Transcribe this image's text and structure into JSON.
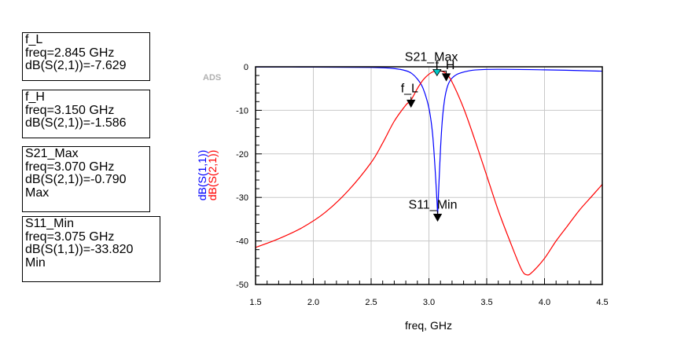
{
  "tool_label": "ADS",
  "markers": [
    {
      "name": "f_L",
      "lines": [
        "f_L",
        "freq=2.845 GHz",
        "dB(S(2,1))=-7.629"
      ]
    },
    {
      "name": "f_H",
      "lines": [
        "f_H",
        "freq=3.150 GHz",
        "dB(S(2,1))=-1.586"
      ]
    },
    {
      "name": "S21_Max",
      "lines": [
        "S21_Max",
        "freq=3.070 GHz",
        "dB(S(2,1))=-0.790",
        "Max"
      ]
    },
    {
      "name": "S11_Min",
      "lines": [
        "S11_Min",
        "freq=3.075 GHz",
        "dB(S(1,1))=-33.820",
        "Min"
      ]
    }
  ],
  "chart_data": {
    "type": "line",
    "xlabel": "freq, GHz",
    "ylabel": [
      "dB(S(1,1))",
      "dB(S(2,1))"
    ],
    "xlim": [
      1.5,
      4.5
    ],
    "ylim": [
      -50,
      0
    ],
    "xticks": [
      "1.5",
      "2.0",
      "2.5",
      "3.0",
      "3.5",
      "4.0",
      "4.5"
    ],
    "yticks": [
      "0",
      "-10",
      "-20",
      "-30",
      "-40",
      "-50"
    ],
    "grid": true,
    "series": [
      {
        "name": "dB(S(1,1))",
        "color": "#0000ff",
        "x": [
          1.5,
          2.0,
          2.5,
          2.7,
          2.8,
          2.85,
          2.9,
          2.95,
          3.0,
          3.03,
          3.05,
          3.07,
          3.075,
          3.08,
          3.1,
          3.12,
          3.15,
          3.2,
          3.3,
          3.5,
          4.0,
          4.5
        ],
        "y": [
          -0.05,
          -0.07,
          -0.15,
          -0.4,
          -0.9,
          -1.5,
          -2.8,
          -5.0,
          -9.5,
          -15.0,
          -22.0,
          -31.0,
          -33.82,
          -31.0,
          -19.0,
          -11.0,
          -5.5,
          -2.6,
          -1.2,
          -0.6,
          -0.7,
          -1.0
        ]
      },
      {
        "name": "dB(S(2,1))",
        "color": "#ff0000",
        "x": [
          1.5,
          1.7,
          1.9,
          2.1,
          2.3,
          2.5,
          2.6,
          2.7,
          2.8,
          2.845,
          2.9,
          2.95,
          3.0,
          3.05,
          3.07,
          3.1,
          3.15,
          3.2,
          3.3,
          3.4,
          3.5,
          3.6,
          3.7,
          3.8,
          3.85,
          3.9,
          4.0,
          4.1,
          4.2,
          4.3,
          4.4,
          4.5
        ],
        "y": [
          -41.5,
          -39.5,
          -37.0,
          -33.5,
          -28.5,
          -22.0,
          -17.5,
          -12.5,
          -8.8,
          -7.63,
          -5.0,
          -3.0,
          -1.7,
          -0.95,
          -0.79,
          -0.9,
          -1.59,
          -3.5,
          -9.5,
          -17.0,
          -25.0,
          -33.0,
          -40.0,
          -46.5,
          -47.8,
          -47.0,
          -44.0,
          -40.0,
          -36.5,
          -33.0,
          -30.0,
          -27.0
        ]
      }
    ],
    "markers": [
      {
        "label": "f_L",
        "x": 2.845,
        "y": -7.629,
        "series": "dB(S(2,1))"
      },
      {
        "label": "f_H",
        "x": 3.15,
        "y": -1.586,
        "series": "dB(S(2,1))"
      },
      {
        "label": "S21_Max",
        "x": 3.07,
        "y": -0.79,
        "series": "dB(S(2,1))"
      },
      {
        "label": "S11_Min",
        "x": 3.075,
        "y": -33.82,
        "series": "dB(S(1,1))"
      }
    ]
  }
}
